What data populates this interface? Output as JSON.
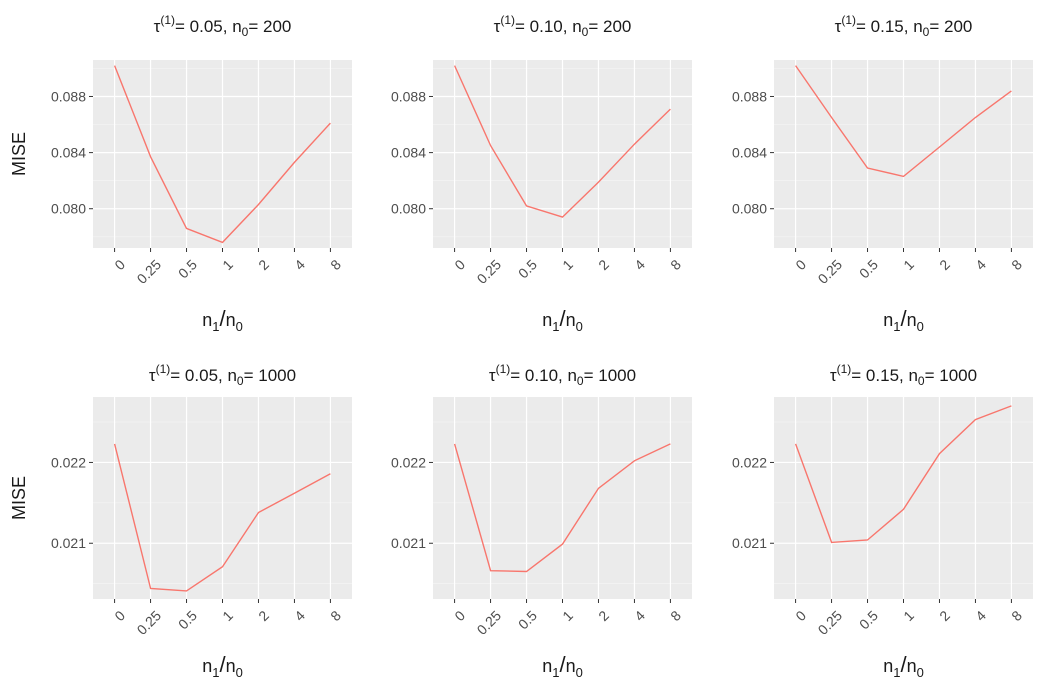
{
  "chart_data": [
    {
      "type": "line",
      "title": "τ(1)= 0.05, n0= 200",
      "title_parts": {
        "tau_sup": "(1)",
        "tau_val": "= 0.05, n",
        "n_sub": "0",
        "n_val": "= 200"
      },
      "xlabel": "n1/n0",
      "ylabel": "MISE",
      "categories": [
        "0",
        "0.25",
        "0.5",
        "1",
        "2",
        "4",
        "8"
      ],
      "values": [
        0.0902,
        0.0837,
        0.0786,
        0.0776,
        0.0803,
        0.0833,
        0.0861
      ],
      "ylim": [
        0.0772,
        0.0906
      ],
      "yticks": [
        "0.080",
        "0.084",
        "0.088"
      ],
      "ytick_values": [
        0.08,
        0.084,
        0.088
      ]
    },
    {
      "type": "line",
      "title": "τ(1)= 0.10, n0= 200",
      "title_parts": {
        "tau_sup": "(1)",
        "tau_val": "= 0.10, n",
        "n_sub": "0",
        "n_val": "= 200"
      },
      "xlabel": "n1/n0",
      "ylabel": "",
      "categories": [
        "0",
        "0.25",
        "0.5",
        "1",
        "2",
        "4",
        "8"
      ],
      "values": [
        0.0902,
        0.0845,
        0.0802,
        0.0794,
        0.0819,
        0.0846,
        0.0871
      ],
      "ylim": [
        0.0772,
        0.0906
      ],
      "yticks": [
        "0.080",
        "0.084",
        "0.088"
      ],
      "ytick_values": [
        0.08,
        0.084,
        0.088
      ]
    },
    {
      "type": "line",
      "title": "τ(1)= 0.15, n0= 200",
      "title_parts": {
        "tau_sup": "(1)",
        "tau_val": "= 0.15, n",
        "n_sub": "0",
        "n_val": "= 200"
      },
      "xlabel": "n1/n0",
      "ylabel": "",
      "categories": [
        "0",
        "0.25",
        "0.5",
        "1",
        "2",
        "4",
        "8"
      ],
      "values": [
        0.0902,
        0.0865,
        0.0829,
        0.0823,
        0.0844,
        0.0865,
        0.0884
      ],
      "ylim": [
        0.0772,
        0.0906
      ],
      "yticks": [
        "0.080",
        "0.084",
        "0.088"
      ],
      "ytick_values": [
        0.08,
        0.084,
        0.088
      ]
    },
    {
      "type": "line",
      "title": "τ(1)= 0.05, n0= 1000",
      "title_parts": {
        "tau_sup": "(1)",
        "tau_val": "= 0.05, n",
        "n_sub": "0",
        "n_val": "= 1000"
      },
      "xlabel": "n1/n0",
      "ylabel": "MISE",
      "categories": [
        "0",
        "0.25",
        "0.5",
        "1",
        "2",
        "4",
        "8"
      ],
      "values": [
        0.02223,
        0.02044,
        0.02041,
        0.02071,
        0.02138,
        0.02162,
        0.02186
      ],
      "ylim": [
        0.02031,
        0.02281
      ],
      "yticks": [
        "0.021",
        "0.022"
      ],
      "ytick_values": [
        0.021,
        0.022
      ]
    },
    {
      "type": "line",
      "title": "τ(1)= 0.10, n0= 1000",
      "title_parts": {
        "tau_sup": "(1)",
        "tau_val": "= 0.10, n",
        "n_sub": "0",
        "n_val": "= 1000"
      },
      "xlabel": "n1/n0",
      "ylabel": "",
      "categories": [
        "0",
        "0.25",
        "0.5",
        "1",
        "2",
        "4",
        "8"
      ],
      "values": [
        0.02223,
        0.02066,
        0.02065,
        0.02099,
        0.02168,
        0.02202,
        0.02223
      ],
      "ylim": [
        0.02031,
        0.02281
      ],
      "yticks": [
        "0.021",
        "0.022"
      ],
      "ytick_values": [
        0.021,
        0.022
      ]
    },
    {
      "type": "line",
      "title": "τ(1)= 0.15, n0= 1000",
      "title_parts": {
        "tau_sup": "(1)",
        "tau_val": "= 0.15, n",
        "n_sub": "0",
        "n_val": "= 1000"
      },
      "xlabel": "n1/n0",
      "ylabel": "",
      "categories": [
        "0",
        "0.25",
        "0.5",
        "1",
        "2",
        "4",
        "8"
      ],
      "values": [
        0.02223,
        0.02101,
        0.02104,
        0.02142,
        0.02211,
        0.02253,
        0.0227
      ],
      "ylim": [
        0.02031,
        0.02281
      ],
      "yticks": [
        "0.021",
        "0.022"
      ],
      "ytick_values": [
        0.021,
        0.022
      ]
    }
  ],
  "colors": {
    "line": "#f8766d",
    "panel_bg": "#ebebeb",
    "grid_major": "#ffffff",
    "tick_text": "#4d4d4d"
  }
}
